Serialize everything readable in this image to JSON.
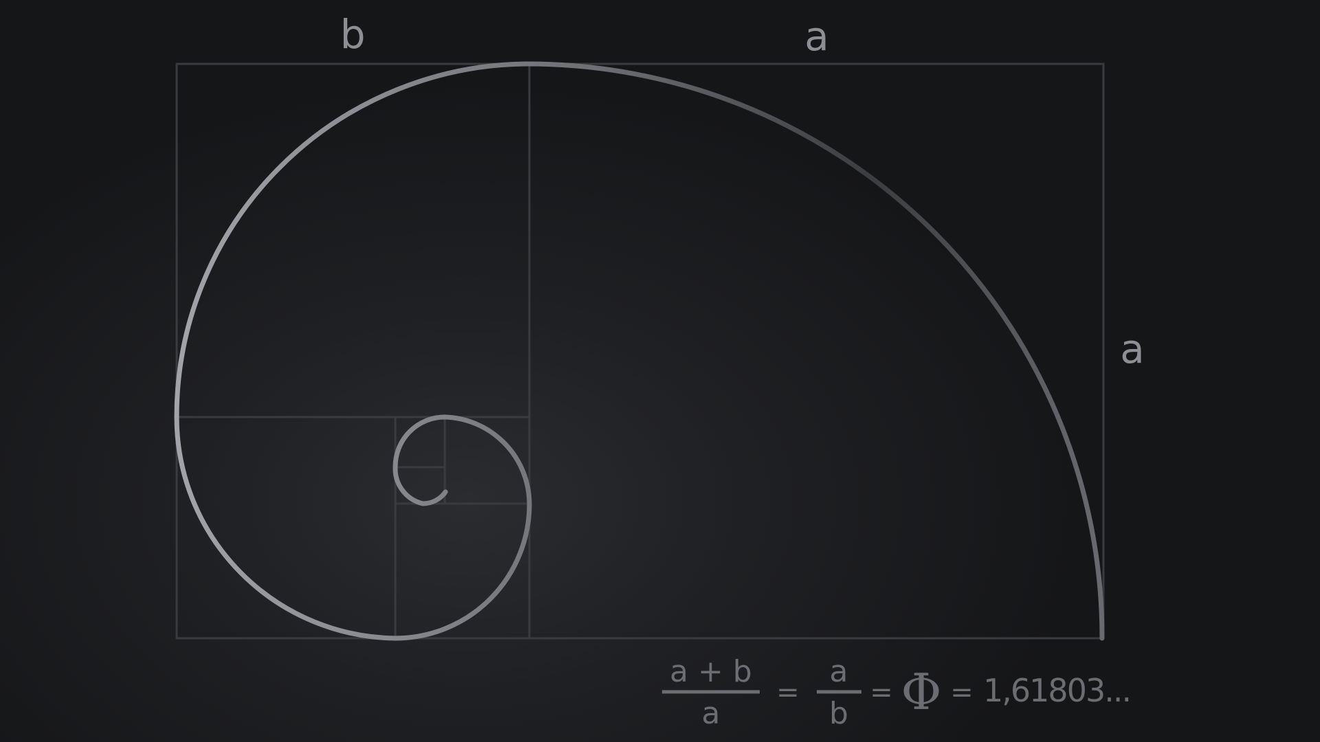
{
  "labels": {
    "top_left": "b",
    "top_right": "a",
    "right_side": "a"
  },
  "formula": {
    "frac1_num": "a + b",
    "frac1_den": "a",
    "eq1": "=",
    "frac2_num": "a",
    "frac2_den": "b",
    "eq2": "=",
    "phi": "Φ",
    "eq3": "=",
    "value": "1,61803..."
  },
  "colors": {
    "background": "#151618",
    "grid_lines": "#3a3b3f",
    "spiral_light": "#a3a4a9",
    "spiral_dark": "#3c3d41",
    "text": "#8e8f94"
  }
}
